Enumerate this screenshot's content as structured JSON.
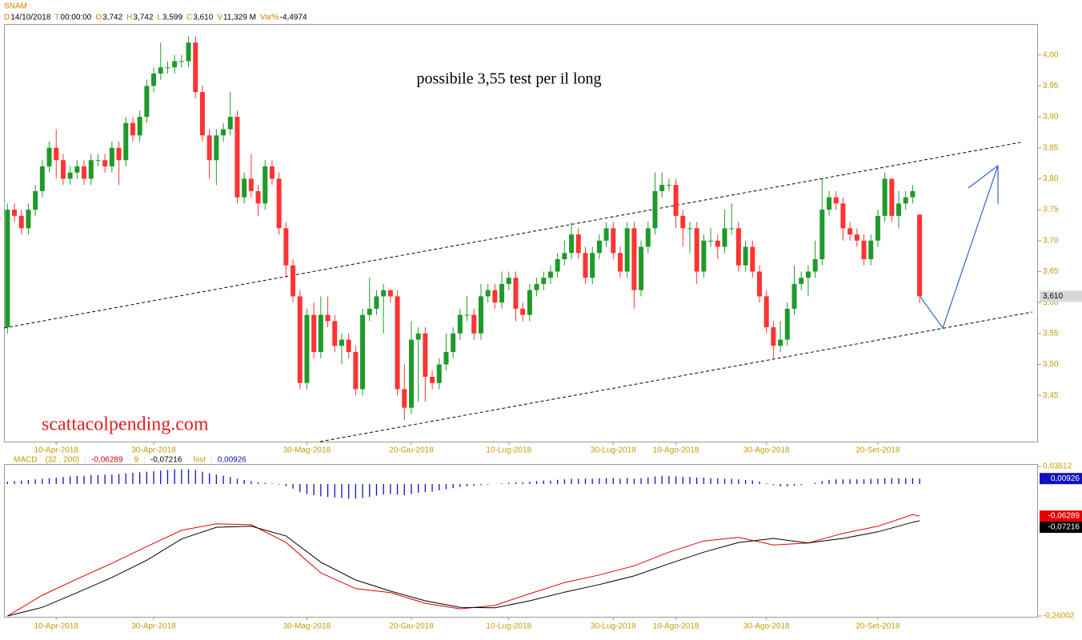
{
  "chart_data": [
    {
      "type": "candlestick",
      "header": {
        "symbol": "SNAM",
        "fields": [
          {
            "key": "D",
            "value": "14/10/2018"
          },
          {
            "key": "T",
            "value": "00:00:00"
          },
          {
            "key": "O",
            "value": "3,742"
          },
          {
            "key": "H",
            "value": "3,742"
          },
          {
            "key": "L",
            "value": "3,599"
          },
          {
            "key": "C",
            "value": "3,610"
          },
          {
            "key": "V",
            "value": "11,329 M"
          },
          {
            "key": "Var%",
            "value": "-4,4974"
          }
        ]
      },
      "annotations": [
        "possibile 3,55 test per il long",
        "scattacolpending.com"
      ],
      "up_color": "#1f9a2a",
      "down_color": "#ff3333",
      "open": [
        3.56,
        3.75,
        3.74,
        3.72,
        3.75,
        3.78,
        3.82,
        3.85,
        3.83,
        3.8,
        3.81,
        3.82,
        3.8,
        3.83,
        3.83,
        3.82,
        3.85,
        3.83,
        3.89,
        3.87,
        3.9,
        3.95,
        3.97,
        3.98,
        3.98,
        3.99,
        3.99,
        4.02,
        3.94,
        3.87,
        3.83,
        3.87,
        3.88,
        3.9,
        3.77,
        3.8,
        3.78,
        3.76,
        3.82,
        3.8,
        3.72,
        3.66,
        3.61,
        3.47,
        3.58,
        3.52,
        3.58,
        3.57,
        3.53,
        3.54,
        3.52,
        3.46,
        3.58,
        3.59,
        3.61,
        3.62,
        3.61,
        3.46,
        3.43,
        3.54,
        3.55,
        3.48,
        3.47,
        3.5,
        3.52,
        3.55,
        3.58,
        3.58,
        3.55,
        3.61,
        3.62,
        3.6,
        3.63,
        3.64,
        3.59,
        3.58,
        3.62,
        3.63,
        3.64,
        3.65,
        3.67,
        3.68,
        3.71,
        3.68,
        3.64,
        3.68,
        3.7,
        3.72,
        3.68,
        3.65,
        3.72,
        3.62,
        3.69,
        3.72,
        3.78,
        3.79,
        3.79,
        3.74,
        3.72,
        3.72,
        3.65,
        3.7,
        3.7,
        3.69,
        3.72,
        3.72,
        3.66,
        3.69,
        3.65,
        3.61,
        3.56,
        3.53,
        3.54,
        3.59,
        3.63,
        3.64,
        3.65,
        3.67,
        3.75,
        3.77,
        3.76,
        3.72,
        3.71,
        3.7,
        3.67,
        3.7,
        3.74,
        3.8,
        3.74,
        3.76,
        3.77,
        3.742
      ],
      "high": [
        3.76,
        3.76,
        3.75,
        3.76,
        3.79,
        3.83,
        3.86,
        3.88,
        3.84,
        3.82,
        3.83,
        3.83,
        3.84,
        3.84,
        3.84,
        3.86,
        3.86,
        3.9,
        3.9,
        3.91,
        3.96,
        3.98,
        4.02,
        3.99,
        4.0,
        4.0,
        4.03,
        4.03,
        3.95,
        3.88,
        3.88,
        3.89,
        3.94,
        3.91,
        3.81,
        3.84,
        3.79,
        3.83,
        3.83,
        3.81,
        3.73,
        3.67,
        3.62,
        3.59,
        3.6,
        3.61,
        3.61,
        3.58,
        3.55,
        3.55,
        3.53,
        3.59,
        3.64,
        3.62,
        3.63,
        3.62,
        3.62,
        3.5,
        3.57,
        3.56,
        3.56,
        3.49,
        3.51,
        3.55,
        3.56,
        3.59,
        3.61,
        3.59,
        3.63,
        3.63,
        3.63,
        3.65,
        3.65,
        3.65,
        3.6,
        3.63,
        3.64,
        3.65,
        3.66,
        3.68,
        3.7,
        3.73,
        3.72,
        3.69,
        3.69,
        3.71,
        3.73,
        3.73,
        3.69,
        3.73,
        3.73,
        3.7,
        3.73,
        3.81,
        3.81,
        3.8,
        3.8,
        3.75,
        3.73,
        3.73,
        3.71,
        3.72,
        3.71,
        3.75,
        3.76,
        3.73,
        3.7,
        3.7,
        3.66,
        3.62,
        3.57,
        3.57,
        3.6,
        3.66,
        3.65,
        3.66,
        3.7,
        3.8,
        3.78,
        3.78,
        3.77,
        3.73,
        3.72,
        3.71,
        3.71,
        3.75,
        3.81,
        3.8,
        3.78,
        3.78,
        3.79,
        3.742
      ],
      "low": [
        3.55,
        3.73,
        3.71,
        3.71,
        3.74,
        3.77,
        3.81,
        3.8,
        3.79,
        3.79,
        3.8,
        3.79,
        3.79,
        3.82,
        3.81,
        3.81,
        3.79,
        3.82,
        3.86,
        3.86,
        3.89,
        3.94,
        3.96,
        3.97,
        3.97,
        3.98,
        3.98,
        3.93,
        3.86,
        3.8,
        3.79,
        3.86,
        3.87,
        3.76,
        3.76,
        3.77,
        3.74,
        3.75,
        3.79,
        3.71,
        3.64,
        3.6,
        3.46,
        3.46,
        3.51,
        3.51,
        3.56,
        3.52,
        3.5,
        3.51,
        3.45,
        3.45,
        3.57,
        3.58,
        3.55,
        3.6,
        3.45,
        3.41,
        3.42,
        3.44,
        3.44,
        3.46,
        3.46,
        3.49,
        3.51,
        3.54,
        3.57,
        3.54,
        3.54,
        3.6,
        3.59,
        3.59,
        3.62,
        3.57,
        3.57,
        3.57,
        3.61,
        3.62,
        3.63,
        3.64,
        3.66,
        3.67,
        3.67,
        3.63,
        3.63,
        3.67,
        3.69,
        3.67,
        3.64,
        3.64,
        3.59,
        3.61,
        3.68,
        3.71,
        3.77,
        3.78,
        3.72,
        3.69,
        3.68,
        3.63,
        3.64,
        3.69,
        3.67,
        3.68,
        3.71,
        3.65,
        3.65,
        3.64,
        3.6,
        3.55,
        3.51,
        3.52,
        3.53,
        3.58,
        3.62,
        3.61,
        3.64,
        3.66,
        3.74,
        3.75,
        3.7,
        3.7,
        3.69,
        3.66,
        3.66,
        3.69,
        3.73,
        3.73,
        3.72,
        3.75,
        3.76,
        3.599
      ],
      "close": [
        3.75,
        3.74,
        3.72,
        3.75,
        3.78,
        3.82,
        3.85,
        3.83,
        3.8,
        3.81,
        3.82,
        3.8,
        3.83,
        3.83,
        3.82,
        3.85,
        3.83,
        3.89,
        3.87,
        3.9,
        3.95,
        3.97,
        3.98,
        3.98,
        3.99,
        3.99,
        4.02,
        3.94,
        3.87,
        3.83,
        3.87,
        3.88,
        3.9,
        3.77,
        3.8,
        3.78,
        3.76,
        3.82,
        3.8,
        3.72,
        3.66,
        3.61,
        3.47,
        3.58,
        3.52,
        3.58,
        3.57,
        3.53,
        3.54,
        3.52,
        3.46,
        3.58,
        3.59,
        3.61,
        3.62,
        3.61,
        3.46,
        3.43,
        3.54,
        3.55,
        3.48,
        3.47,
        3.5,
        3.52,
        3.55,
        3.58,
        3.58,
        3.55,
        3.61,
        3.62,
        3.6,
        3.63,
        3.64,
        3.59,
        3.58,
        3.62,
        3.63,
        3.64,
        3.65,
        3.67,
        3.68,
        3.71,
        3.68,
        3.64,
        3.68,
        3.7,
        3.72,
        3.68,
        3.65,
        3.72,
        3.62,
        3.69,
        3.72,
        3.78,
        3.79,
        3.79,
        3.74,
        3.72,
        3.72,
        3.65,
        3.7,
        3.7,
        3.69,
        3.72,
        3.72,
        3.66,
        3.69,
        3.65,
        3.61,
        3.56,
        3.53,
        3.54,
        3.59,
        3.63,
        3.64,
        3.65,
        3.67,
        3.75,
        3.77,
        3.76,
        3.72,
        3.71,
        3.7,
        3.67,
        3.7,
        3.74,
        3.8,
        3.74,
        3.76,
        3.77,
        3.78,
        3.61
      ],
      "last_label": "3,610",
      "xlim": [
        -0.5,
        148
      ],
      "xticks": [
        {
          "value": 7,
          "label": "10-Apr-2018"
        },
        {
          "value": 21,
          "label": "30-Apr-2018"
        },
        {
          "value": 43,
          "label": "30-Mag-2018"
        },
        {
          "value": 58,
          "label": "20-Giu-2018"
        },
        {
          "value": 72,
          "label": "10-Lug-2018"
        },
        {
          "value": 87,
          "label": "30-Lug-2018"
        },
        {
          "value": 96,
          "label": "10-Ago-2018"
        },
        {
          "value": 109,
          "label": "30-Ago-2018"
        },
        {
          "value": 125,
          "label": "20-Set-2018"
        }
      ],
      "ylim": [
        3.374,
        4.05
      ],
      "yticks": [
        {
          "value": 3.45,
          "label": "3,45"
        },
        {
          "value": 3.5,
          "label": "3,50"
        },
        {
          "value": 3.55,
          "label": "3,55"
        },
        {
          "value": 3.6,
          "label": "3,60"
        },
        {
          "value": 3.65,
          "label": "3,65"
        },
        {
          "value": 3.7,
          "label": "3,70"
        },
        {
          "value": 3.75,
          "label": "3,75"
        },
        {
          "value": 3.8,
          "label": "3,80"
        },
        {
          "value": 3.85,
          "label": "3,85"
        },
        {
          "value": 3.9,
          "label": "3,90"
        },
        {
          "value": 3.95,
          "label": "3,95"
        },
        {
          "value": 4.0,
          "label": "4,00"
        }
      ]
    },
    {
      "type": "line",
      "title": "MACD",
      "separator": ":",
      "xlim": [
        -0.5,
        148
      ],
      "ylim": [
        -0.26002,
        0.03512
      ],
      "yticks": [
        {
          "value": 0.03512,
          "label": "0,03512"
        },
        {
          "value": -0.26002,
          "label": "-0,26002"
        }
      ],
      "y2lim": [
        -0.03,
        0.03
      ],
      "series": [
        {
          "name": "(32 , 200)",
          "color": "#e00000",
          "last_label": "-0,06289",
          "x": [
            0,
            5,
            10,
            15,
            20,
            25,
            30,
            35,
            40,
            45,
            50,
            55,
            60,
            65,
            70,
            75,
            80,
            85,
            90,
            95,
            100,
            105,
            110,
            115,
            120,
            125,
            130,
            131
          ],
          "values": [
            -0.26,
            -0.219,
            -0.187,
            -0.156,
            -0.123,
            -0.091,
            -0.078,
            -0.08,
            -0.115,
            -0.175,
            -0.206,
            -0.214,
            -0.235,
            -0.246,
            -0.239,
            -0.216,
            -0.194,
            -0.179,
            -0.161,
            -0.134,
            -0.112,
            -0.105,
            -0.12,
            -0.116,
            -0.097,
            -0.083,
            -0.06,
            -0.06289
          ]
        },
        {
          "name": "9",
          "color": "#000000",
          "last_label": "-0,07216",
          "x": [
            0,
            5,
            10,
            15,
            20,
            25,
            30,
            35,
            40,
            45,
            50,
            55,
            60,
            65,
            70,
            75,
            80,
            85,
            90,
            95,
            100,
            105,
            110,
            115,
            120,
            125,
            130,
            131
          ],
          "values": [
            -0.26,
            -0.243,
            -0.214,
            -0.184,
            -0.15,
            -0.108,
            -0.085,
            -0.083,
            -0.102,
            -0.154,
            -0.189,
            -0.211,
            -0.23,
            -0.243,
            -0.244,
            -0.23,
            -0.213,
            -0.198,
            -0.181,
            -0.157,
            -0.134,
            -0.115,
            -0.107,
            -0.116,
            -0.107,
            -0.094,
            -0.075,
            -0.07216
          ]
        },
        {
          "name": "hist",
          "color": "#1010c0",
          "type": "bar",
          "axis": "y2",
          "last_label": "0,00926",
          "values": [
            0.004,
            0.005,
            0.006,
            0.007,
            0.008,
            0.009,
            0.01,
            0.011,
            0.012,
            0.013,
            0.014,
            0.014,
            0.015,
            0.015,
            0.016,
            0.016,
            0.017,
            0.018,
            0.019,
            0.02,
            0.021,
            0.022,
            0.023,
            0.024,
            0.025,
            0.025,
            0.025,
            0.024,
            0.021,
            0.018,
            0.016,
            0.014,
            0.012,
            0.009,
            0.007,
            0.005,
            0.003,
            0.002,
            0.001,
            -0.001,
            -0.004,
            -0.008,
            -0.014,
            -0.017,
            -0.019,
            -0.021,
            -0.022,
            -0.023,
            -0.024,
            -0.025,
            -0.025,
            -0.024,
            -0.022,
            -0.02,
            -0.018,
            -0.017,
            -0.018,
            -0.019,
            -0.017,
            -0.015,
            -0.014,
            -0.013,
            -0.011,
            -0.009,
            -0.007,
            -0.005,
            -0.004,
            -0.003,
            -0.002,
            -0.001,
            0.0,
            0.001,
            0.002,
            0.003,
            0.003,
            0.004,
            0.005,
            0.006,
            0.006,
            0.007,
            0.008,
            0.009,
            0.009,
            0.009,
            0.009,
            0.01,
            0.01,
            0.01,
            0.009,
            0.01,
            0.009,
            0.01,
            0.011,
            0.013,
            0.014,
            0.014,
            0.013,
            0.012,
            0.012,
            0.011,
            0.011,
            0.01,
            0.01,
            0.009,
            0.009,
            0.008,
            0.007,
            0.006,
            0.004,
            0.001,
            -0.002,
            -0.004,
            -0.004,
            -0.003,
            -0.002,
            0.0,
            0.002,
            0.005,
            0.007,
            0.008,
            0.008,
            0.008,
            0.008,
            0.008,
            0.009,
            0.009,
            0.01,
            0.01,
            0.01,
            0.01,
            0.01,
            0.00926
          ]
        }
      ]
    }
  ]
}
